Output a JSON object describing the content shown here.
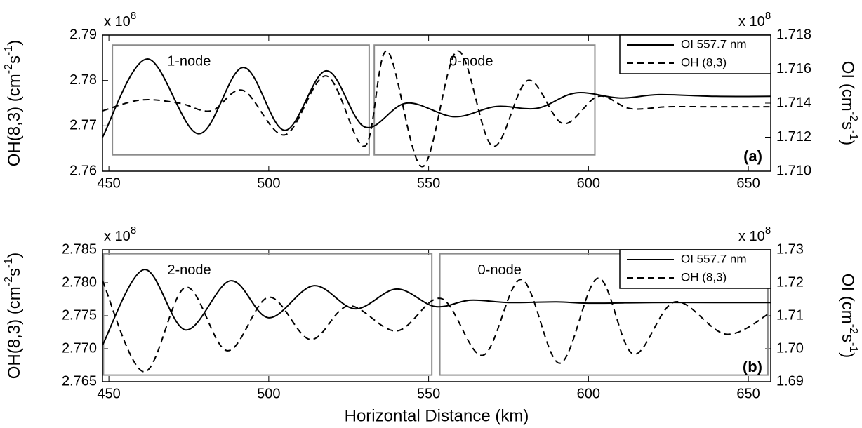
{
  "chart_data": [
    {
      "type": "line",
      "panel_label": "(a)",
      "xlim": [
        448,
        657
      ],
      "xticks": [
        450,
        500,
        550,
        600,
        650
      ],
      "ylim": [
        2.76,
        2.79
      ],
      "yticks": [
        2.76,
        2.77,
        2.78,
        2.79
      ],
      "y2lim": [
        1.71,
        1.718
      ],
      "y2ticks": [
        {
          "value": 1.71,
          "label": "1.710"
        },
        1.712,
        1.714,
        1.716,
        1.718
      ],
      "y_multiplier": {
        "base": "x 10",
        "exponent": "8"
      },
      "y2_multiplier": {
        "base": "x 10",
        "exponent": "8"
      },
      "ylabel": [
        "OH(8,3) (cm",
        "-2",
        "s",
        "-1",
        ")"
      ],
      "y2label": [
        "OI (cm",
        "-2",
        "s",
        "-1",
        ")"
      ],
      "legend": "upper right",
      "regions": [
        {
          "label": "1-node",
          "x": [
            451.1,
            531.4
          ],
          "y": [
            2.7636,
            2.7878
          ]
        },
        {
          "label": "0-node",
          "x": [
            533.0,
            602.0
          ],
          "y": [
            2.7636,
            2.7878
          ]
        }
      ],
      "series": [
        {
          "name": "OI 557.7 nm",
          "color": "#000000",
          "dash": "solid",
          "axis": "y2",
          "x": [
            448,
            462,
            478,
            492,
            505,
            518,
            530,
            543,
            558,
            571,
            584,
            596,
            610,
            622,
            640,
            657
          ],
          "values": [
            1.712,
            1.7166,
            1.7122,
            1.7161,
            1.7124,
            1.7159,
            1.7126,
            1.714,
            1.7132,
            1.7138,
            1.7137,
            1.7146,
            1.7143,
            1.7145,
            1.7144,
            1.7144
          ]
        },
        {
          "name": "OH (8,3)",
          "color": "#000000",
          "dash": "dashed",
          "axis": "y",
          "x": [
            448,
            460,
            472,
            482,
            492,
            505,
            518,
            530,
            537,
            548,
            559,
            570,
            581,
            592,
            603,
            613,
            625,
            640,
            657
          ],
          "values": [
            2.7733,
            2.7757,
            2.775,
            2.7733,
            2.7778,
            2.768,
            2.781,
            2.7655,
            2.7865,
            2.761,
            2.7865,
            2.7655,
            2.78,
            2.7705,
            2.7765,
            2.7738,
            2.7742,
            2.7742,
            2.7742
          ]
        }
      ]
    },
    {
      "type": "line",
      "panel_label": "(b)",
      "xlabel": "Horizontal Distance (km)",
      "xlim": [
        448,
        657
      ],
      "xticks": [
        450,
        500,
        550,
        600,
        650
      ],
      "ylim": [
        2.765,
        2.785
      ],
      "yticks": [
        2.765,
        {
          "value": 2.77,
          "label": "2.770"
        },
        2.775,
        {
          "value": 2.78,
          "label": "2.780"
        },
        2.785
      ],
      "y2lim": [
        1.69,
        1.73
      ],
      "y2ticks": [
        1.69,
        {
          "value": 1.7,
          "label": "1.70"
        },
        1.71,
        1.72,
        1.73
      ],
      "y_multiplier": {
        "base": "x 10",
        "exponent": "8"
      },
      "y2_multiplier": {
        "base": "x 10",
        "exponent": "8"
      },
      "ylabel": [
        "OH(8,3) (cm",
        "-2",
        "s",
        "-1",
        ")"
      ],
      "y2label": [
        "OI (cm",
        "-2",
        "s",
        "-1",
        ")"
      ],
      "legend": "upper right",
      "regions": [
        {
          "label": "2-node",
          "x": [
            448.3,
            551.0
          ],
          "y": [
            2.766,
            2.7844
          ]
        },
        {
          "label": "0-node",
          "x": [
            553.5,
            656.1
          ],
          "y": [
            2.766,
            2.7844
          ]
        }
      ],
      "series": [
        {
          "name": "OI 557.7 nm",
          "color": "#000000",
          "dash": "solid",
          "axis": "y2",
          "x": [
            448,
            461,
            474,
            488,
            500,
            514,
            527,
            540,
            552,
            563,
            575,
            590,
            600,
            620,
            640,
            657
          ],
          "values": [
            1.7011,
            1.724,
            1.7057,
            1.7206,
            1.7094,
            1.7191,
            1.7121,
            1.7181,
            1.7128,
            1.7147,
            1.714,
            1.7142,
            1.7138,
            1.714,
            1.714,
            1.714
          ]
        },
        {
          "name": "OH (8,3)",
          "color": "#000000",
          "dash": "dashed",
          "axis": "y",
          "x": [
            448,
            461,
            474,
            487,
            500,
            513,
            525,
            540,
            554,
            567,
            579,
            591,
            603,
            614,
            627,
            643,
            657
          ],
          "values": [
            2.7803,
            2.7665,
            2.7793,
            2.7697,
            2.7778,
            2.7714,
            2.7765,
            2.7727,
            2.7776,
            2.769,
            2.7805,
            2.7678,
            2.7807,
            2.7692,
            2.7771,
            2.7722,
            2.7755
          ]
        }
      ]
    }
  ]
}
